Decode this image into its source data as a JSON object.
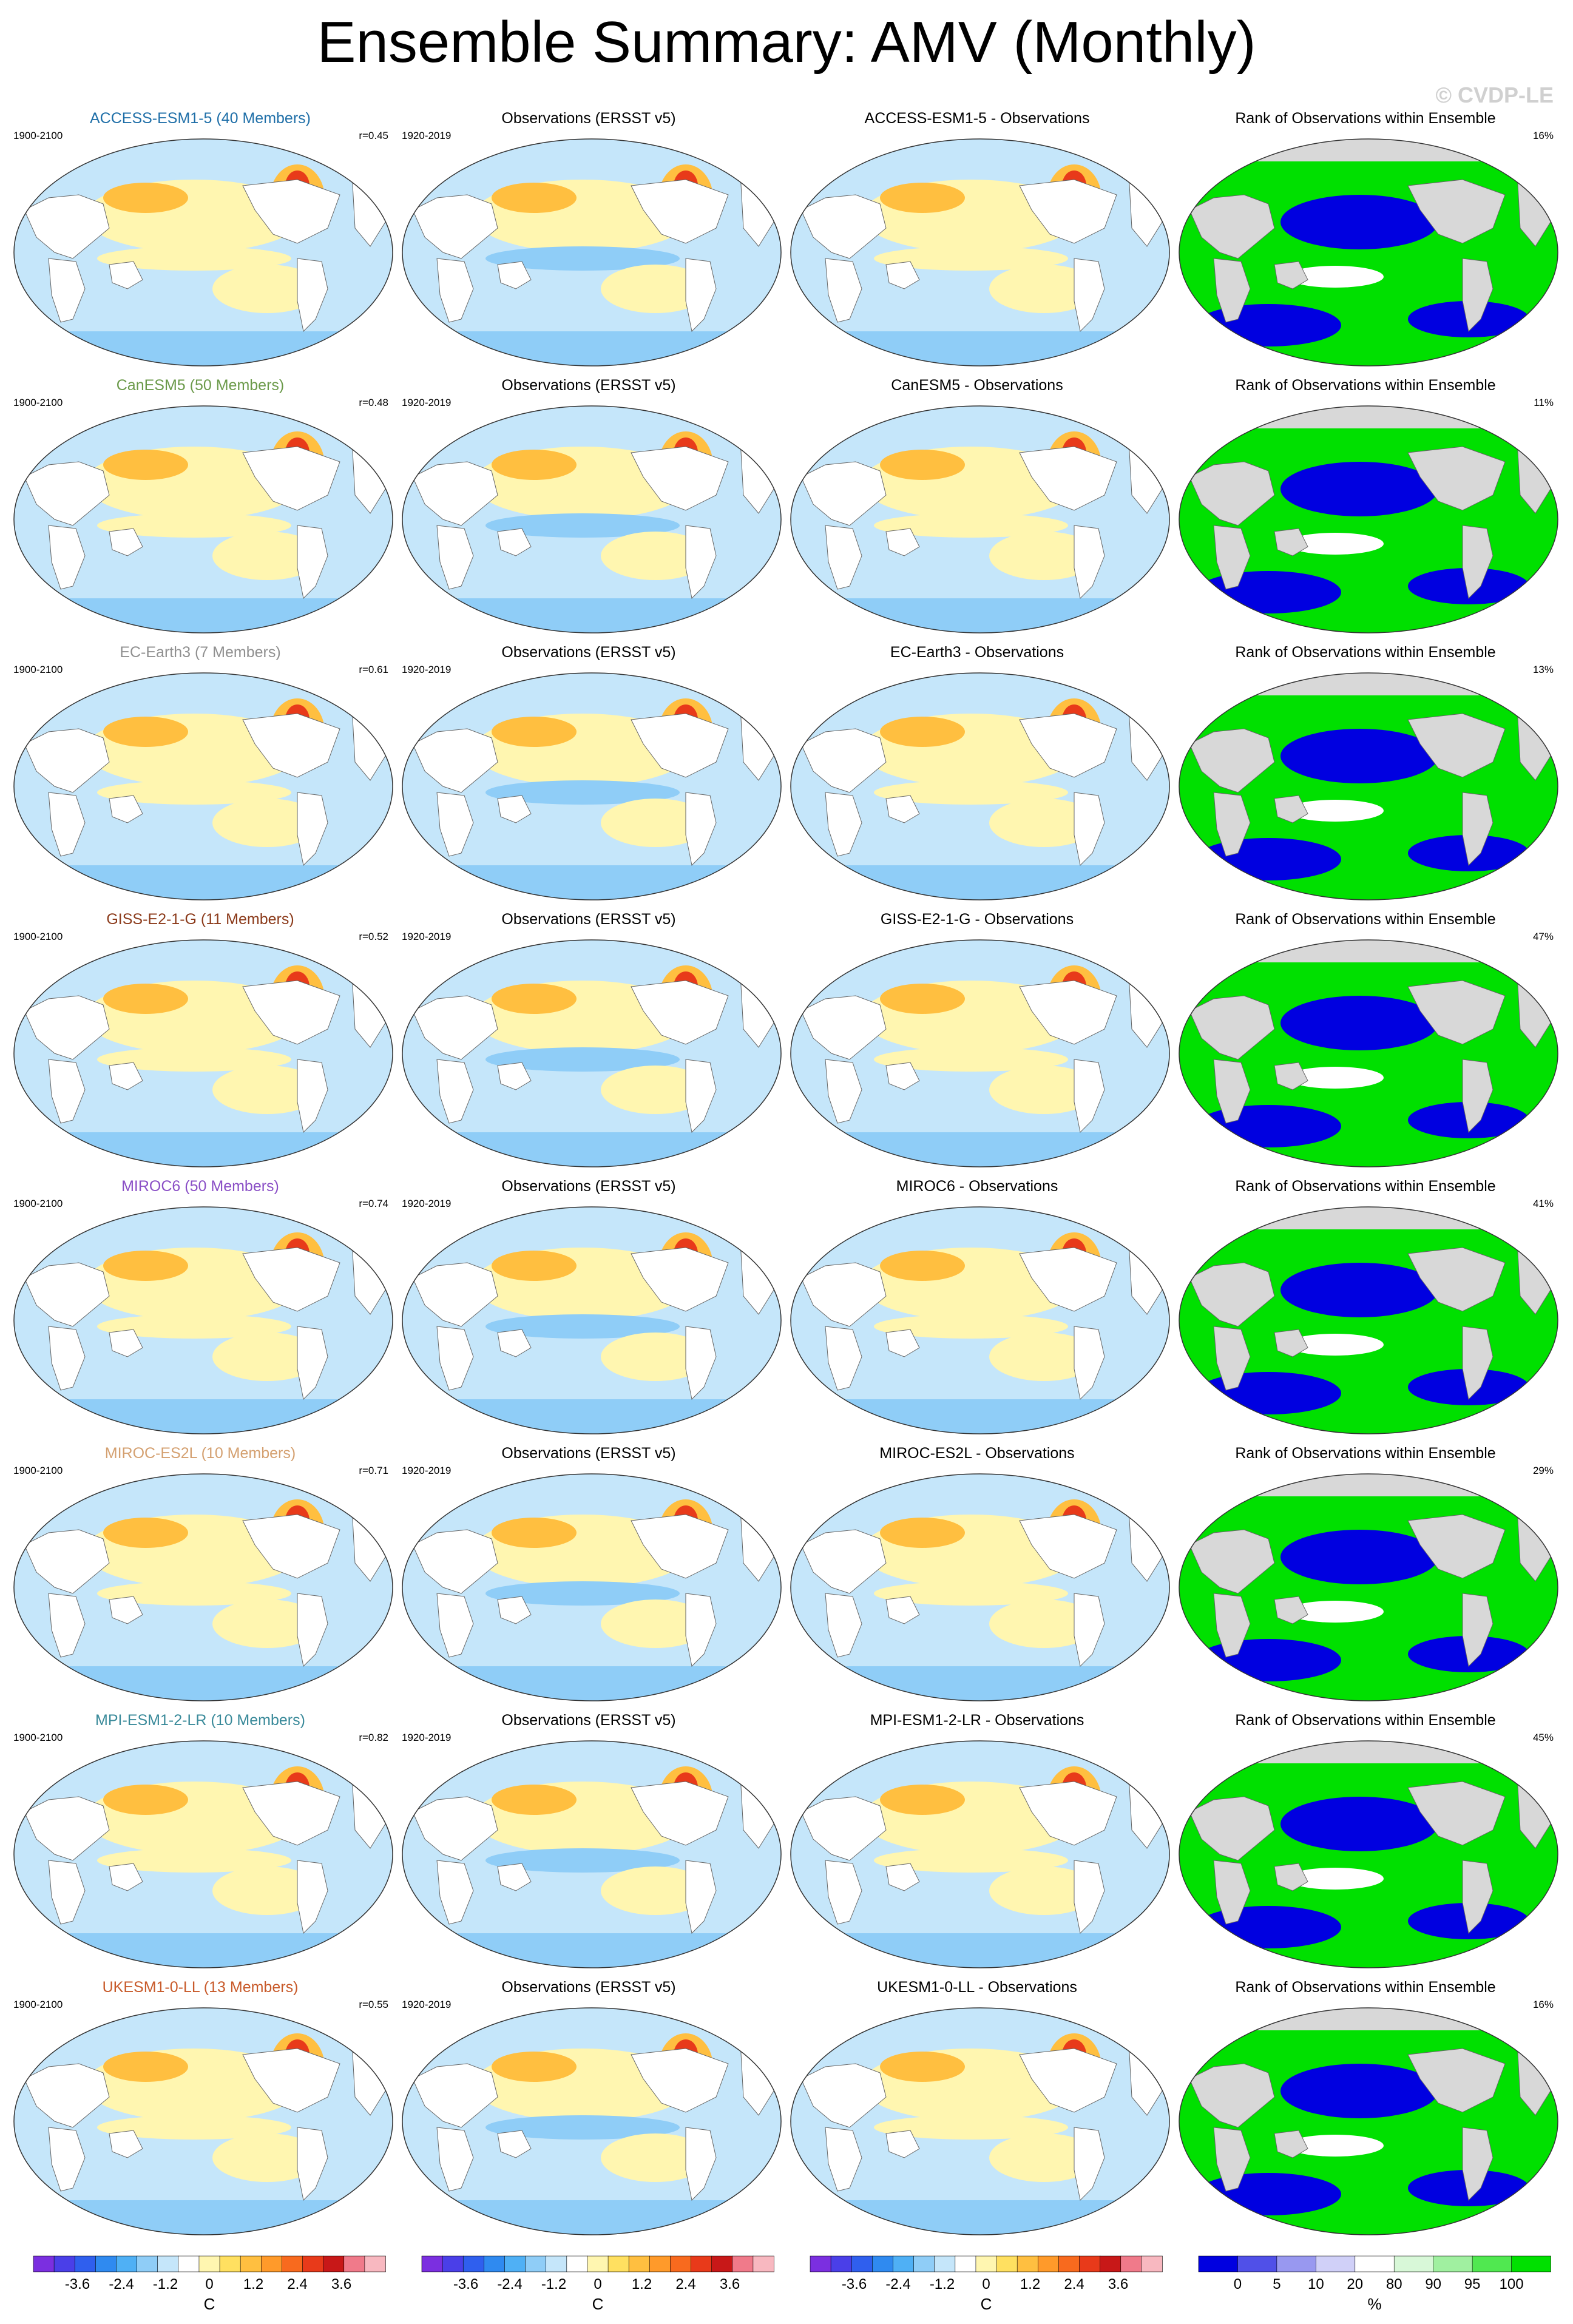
{
  "title": "Ensemble Summary: AMV (Monthly)",
  "watermark": "© CVDP-LE",
  "rows": [
    {
      "model": "ACCESS-ESM1-5 (40 Members)",
      "model_color": "#1f6fa8",
      "period": "1900-2100",
      "r": "r=0.45",
      "diff": "ACCESS-ESM1-5 - Observations",
      "rank_pct": "16%"
    },
    {
      "model": "CanESM5 (50 Members)",
      "model_color": "#6b9a4a",
      "period": "1900-2100",
      "r": "r=0.48",
      "diff": "CanESM5 - Observations",
      "rank_pct": "11%"
    },
    {
      "model": "EC-Earth3 (7 Members)",
      "model_color": "#909090",
      "period": "1900-2100",
      "r": "r=0.61",
      "diff": "EC-Earth3 - Observations",
      "rank_pct": "13%"
    },
    {
      "model": "GISS-E2-1-G (11 Members)",
      "model_color": "#8b3a1a",
      "period": "1900-2100",
      "r": "r=0.52",
      "diff": "GISS-E2-1-G - Observations",
      "rank_pct": "47%"
    },
    {
      "model": "MIROC6 (50 Members)",
      "model_color": "#8a4fc6",
      "period": "1900-2100",
      "r": "r=0.74",
      "diff": "MIROC6 - Observations",
      "rank_pct": "41%"
    },
    {
      "model": "MIROC-ES2L (10 Members)",
      "model_color": "#d4a070",
      "period": "1900-2100",
      "r": "r=0.71",
      "diff": "MIROC-ES2L - Observations",
      "rank_pct": "29%"
    },
    {
      "model": "MPI-ESM1-2-LR (10 Members)",
      "model_color": "#3a8a9a",
      "period": "1900-2100",
      "r": "r=0.82",
      "diff": "MPI-ESM1-2-LR - Observations",
      "rank_pct": "45%"
    },
    {
      "model": "UKESM1-0-LL (13 Members)",
      "model_color": "#c85a2a",
      "period": "1900-2100",
      "r": "r=0.55",
      "diff": "UKESM1-0-LL - Observations",
      "rank_pct": "16%"
    }
  ],
  "obs": {
    "title": "Observations (ERSST v5)",
    "period": "1920-2019"
  },
  "rank_title": "Rank of Observations within Ensemble",
  "temp_colorbar": {
    "unit": "C",
    "ticks": [
      "-3.6",
      "-2.4",
      "-1.2",
      "0",
      "1.2",
      "2.4",
      "3.6"
    ],
    "colors": [
      "#7b2fe0",
      "#4a3fe8",
      "#2f5fee",
      "#2f8af0",
      "#4fb0f5",
      "#8fcdf7",
      "#c5e6fa",
      "#ffffff",
      "#fff6b0",
      "#ffe060",
      "#ffbf40",
      "#ff9a2a",
      "#f86a1e",
      "#e83a1a",
      "#c81818",
      "#f07a8a",
      "#f8b8c0"
    ]
  },
  "rank_colorbar": {
    "unit": "%",
    "ticks": [
      "0",
      "5",
      "10",
      "20",
      "80",
      "90",
      "95",
      "100"
    ],
    "colors": [
      "#0000e0",
      "#5050e8",
      "#9898f0",
      "#d0d0f8",
      "#ffffff",
      "#d8f8d8",
      "#a0f0a0",
      "#50e850",
      "#00e000"
    ]
  },
  "colors": {
    "land": "#ffffff",
    "rank_land": "#d8d8d8",
    "blue_light": "#c5e6fa",
    "blue_mid": "#8fcdf7",
    "blue_deep": "#4fb0f5",
    "yellow": "#fff6b0",
    "orange": "#ffbf40",
    "red": "#e83a1a",
    "rank_blue": "#0000e0",
    "rank_green": "#00e000"
  }
}
